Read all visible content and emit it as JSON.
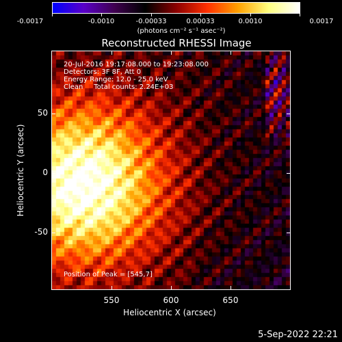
{
  "colorbar": {
    "labels": [
      "-0.0017",
      "-0.0010",
      "-0.00033",
      "0.00033",
      "0.0010",
      "0.0017"
    ],
    "units": "(photons cm⁻² s⁻¹ asec⁻²)",
    "colors": [
      "#0000ff",
      "#5a00c8",
      "#400050",
      "#000000",
      "#8b0000",
      "#ff3000",
      "#ffa000",
      "#ffff80",
      "#ffffff"
    ]
  },
  "title": "Reconstructed RHESSI Image",
  "info": {
    "line1": "20-Jul-2016 19:17:08.000 to 19:23:08.000",
    "line2": "Detectors: 3F 8F, Att 0",
    "line3": "Energy Range: 12.0 - 25.0 keV",
    "line4": "Clean     Total counts: 2.24E+03"
  },
  "peak": "Position of Peak = [545,7]",
  "axes": {
    "xlabel": "Heliocentric X (arcsec)",
    "ylabel": "Heliocentric Y (arcsec)",
    "xticks": [
      "550",
      "600",
      "650"
    ],
    "yticks": [
      "50",
      "0",
      "-50"
    ]
  },
  "footer": "5-Sep-2022 22:21"
}
